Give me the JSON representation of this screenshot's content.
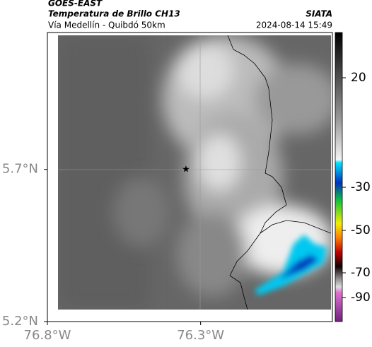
{
  "header": {
    "source": "GOES-EAST",
    "title": "Temperatura de Brillo CH13",
    "agency": "SIATA",
    "route": "Vía Medellín - Quibdó 50km",
    "datetime": "2024-08-14 15:49"
  },
  "map": {
    "lon_lim": [
      -76.8,
      -75.87
    ],
    "lat_lim": [
      5.2,
      6.15
    ],
    "lat_ticks": [
      {
        "value": 5.7,
        "label": "5.7°N"
      },
      {
        "value": 5.2,
        "label": "5.2°N"
      }
    ],
    "lon_ticks": [
      {
        "value": -76.8,
        "label": "76.8°W"
      },
      {
        "value": -76.3,
        "label": "76.3°W"
      }
    ]
  },
  "colorbar": {
    "ticks": [
      20,
      -30,
      -50,
      -70,
      -90
    ]
  }
}
